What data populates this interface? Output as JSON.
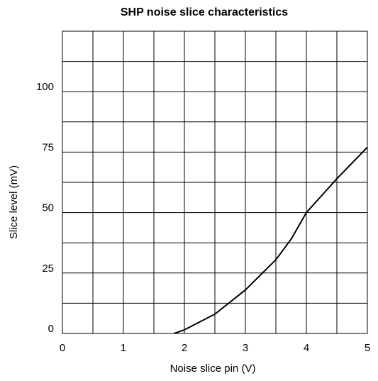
{
  "chart_data": {
    "type": "line",
    "title": "SHP noise slice characteristics",
    "x_label": "Noise slice pin (V)",
    "y_label": "Slice level (mV)",
    "series": [
      {
        "name": "Slice level",
        "color": "#000000",
        "x": [
          1.83,
          2.0,
          2.5,
          3.0,
          3.5,
          3.75,
          4.0,
          4.25,
          4.5,
          5.0
        ],
        "values": [
          0,
          1.5,
          8,
          18,
          30.5,
          39,
          50,
          57,
          64,
          77
        ]
      }
    ],
    "xlim": [
      0,
      5
    ],
    "ylim": [
      0,
      125
    ],
    "xticks": [
      0,
      1,
      2,
      3,
      4,
      5
    ],
    "yticks": [
      0,
      25,
      50,
      75,
      100
    ],
    "xminorticks": [
      0.5,
      1.5,
      2.5,
      3.5,
      4.5
    ],
    "yminorticks": [
      12.5,
      37.5,
      62.5,
      87.5,
      112.5
    ],
    "grid": true
  }
}
